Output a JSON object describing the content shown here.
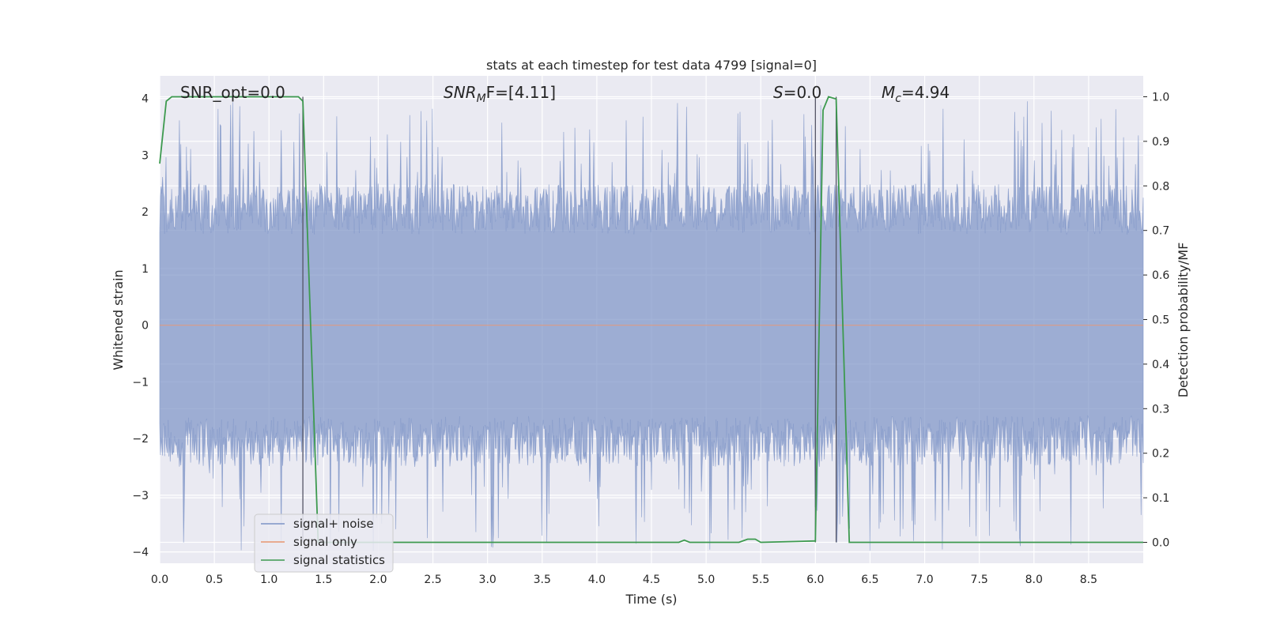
{
  "chart_data": {
    "type": "line",
    "title": "stats at each timestep for test data 4799 [signal=0]",
    "xlabel": "Time (s)",
    "ylabel_left": "Whitened strain",
    "ylabel_right": "Detection probability/MF",
    "xlim": [
      0.0,
      9.0
    ],
    "ylim_left": [
      -4.2,
      4.4
    ],
    "ylim_right": [
      -0.047,
      1.047
    ],
    "x_ticks": [
      "0.0",
      "0.5",
      "1.0",
      "1.5",
      "2.0",
      "2.5",
      "3.0",
      "3.5",
      "4.0",
      "4.5",
      "5.0",
      "5.5",
      "6.0",
      "6.5",
      "7.0",
      "7.5",
      "8.0",
      "8.5"
    ],
    "y_left_ticks": [
      "4",
      "3",
      "2",
      "1",
      "0",
      "−1",
      "−2",
      "−3",
      "−4"
    ],
    "y_right_ticks": [
      "1.0",
      "0.9",
      "0.8",
      "0.7",
      "0.6",
      "0.5",
      "0.4",
      "0.3",
      "0.2",
      "0.1",
      "0.0"
    ],
    "grid": true,
    "legend_position": "lower-left",
    "annotations": {
      "snr_opt": "SNR_opt=0.0",
      "snr_mf_sym": "SNR",
      "snr_mf_sub": "M",
      "snr_mf_rest": "F=[4.11]",
      "s_sym": "S",
      "s_rest": "=0.0",
      "mc_sym": "M",
      "mc_sub": "c",
      "mc_rest": "=4.94"
    },
    "vlines": [
      1.31,
      6.0,
      6.19
    ],
    "series": [
      {
        "name": "signal+ noise",
        "color": "#7c93c6",
        "envelope_amplitude_typical": 2.3,
        "envelope_amplitude_max": 4.0
      },
      {
        "name": "signal only",
        "color": "#e8956f",
        "values_constant": 0.0
      },
      {
        "name": "signal statistics",
        "color": "#3d9a4f",
        "x": [
          0.0,
          0.06,
          0.11,
          0.2,
          1.2,
          1.27,
          1.31,
          1.45,
          2.0,
          4.75,
          4.8,
          4.85,
          5.3,
          5.38,
          5.45,
          5.5,
          5.98,
          6.0,
          6.07,
          6.12,
          6.19,
          6.31,
          9.0
        ],
        "y": [
          0.85,
          0.99,
          1.0,
          1.0,
          1.0,
          1.0,
          0.99,
          0.0,
          0.0,
          0.0,
          0.005,
          0.0,
          0.0,
          0.007,
          0.007,
          0.0,
          0.003,
          0.003,
          0.97,
          1.0,
          0.995,
          0.0,
          0.0
        ]
      }
    ]
  }
}
